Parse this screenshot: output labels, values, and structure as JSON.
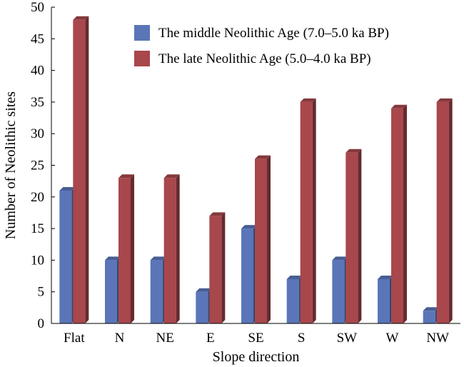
{
  "chart_data": {
    "type": "bar",
    "title": "",
    "xlabel": "Slope direction",
    "ylabel": "Number of Neolithic sites",
    "ylim": [
      0,
      50
    ],
    "yticks": [
      0,
      5,
      10,
      15,
      20,
      25,
      30,
      35,
      40,
      45,
      50
    ],
    "categories": [
      "Flat",
      "N",
      "NE",
      "E",
      "SE",
      "S",
      "SW",
      "W",
      "NW"
    ],
    "series": [
      {
        "name": "The middle Neolithic Age (7.0–5.0 ka BP)",
        "color": "#5a76b8",
        "values": [
          21,
          10,
          10,
          5,
          15,
          7,
          10,
          7,
          2
        ]
      },
      {
        "name": "The late Neolithic Age (5.0–4.0 ka BP)",
        "color": "#a8474c",
        "values": [
          48,
          23,
          23,
          17,
          26,
          35,
          27,
          34,
          35
        ]
      }
    ],
    "legend_position": "top-right",
    "grid": false,
    "style": "3d-bar"
  }
}
